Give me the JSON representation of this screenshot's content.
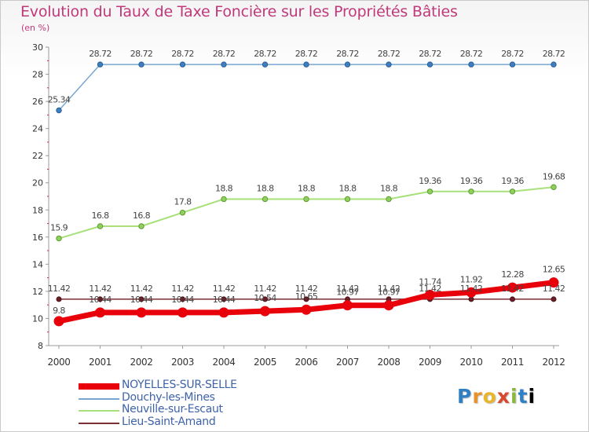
{
  "chart_data": {
    "type": "line",
    "title": "Evolution du Taux de Taxe Foncière sur les Propriétés Bâties",
    "ylabel": "(en %)",
    "xlabel": "",
    "ylim": [
      8,
      30
    ],
    "yticks": [
      8,
      10,
      12,
      14,
      16,
      18,
      20,
      22,
      24,
      26,
      28,
      30
    ],
    "categories": [
      "2000",
      "2001",
      "2002",
      "2003",
      "2004",
      "2005",
      "2006",
      "2007",
      "2008",
      "2009",
      "2010",
      "2011",
      "2012"
    ],
    "series": [
      {
        "name": "NOYELLES-SUR-SELLE",
        "color": "#e8000b",
        "values": [
          9.8,
          10.44,
          10.44,
          10.44,
          10.44,
          10.54,
          10.65,
          10.97,
          10.97,
          11.74,
          11.92,
          12.28,
          12.65
        ],
        "labels": [
          "9.8",
          "10.44",
          "10.44",
          "10.44",
          "10.44",
          "10.54",
          "10.65",
          "10.97",
          "10.97",
          "11.74",
          "11.92",
          "12.28",
          "12.65"
        ]
      },
      {
        "name": "Douchy-les-Mines",
        "color": "#78a6d2",
        "values": [
          25.34,
          28.72,
          28.72,
          28.72,
          28.72,
          28.72,
          28.72,
          28.72,
          28.72,
          28.72,
          28.72,
          28.72,
          28.72
        ],
        "labels": [
          "25.34",
          "28.72",
          "28.72",
          "28.72",
          "28.72",
          "28.72",
          "28.72",
          "28.72",
          "28.72",
          "28.72",
          "28.72",
          "28.72",
          "28.72"
        ]
      },
      {
        "name": "Neuville-sur-Escaut",
        "color": "#a8e07a",
        "values": [
          15.9,
          16.8,
          16.8,
          17.8,
          18.8,
          18.8,
          18.8,
          18.8,
          18.8,
          19.36,
          19.36,
          19.36,
          19.68
        ],
        "labels": [
          "15.9",
          "16.8",
          "16.8",
          "17.8",
          "18.8",
          "18.8",
          "18.8",
          "18.8",
          "18.8",
          "19.36",
          "19.36",
          "19.36",
          "19.68"
        ]
      },
      {
        "name": "Lieu-Saint-Amand",
        "color": "#7a2e36",
        "values": [
          11.42,
          11.42,
          11.42,
          11.42,
          11.42,
          11.42,
          11.42,
          11.42,
          11.42,
          11.42,
          11.42,
          11.42,
          11.42
        ],
        "labels": [
          "11.42",
          "11.42",
          "11.42",
          "11.42",
          "11.42",
          "11.42",
          "11.42",
          "11.42",
          "11.42",
          "11.42",
          "11.42",
          "11.42",
          "11.42"
        ]
      }
    ],
    "legend_position": "bottom-left",
    "grid": false
  },
  "branding": {
    "logo_letters": [
      "P",
      "r",
      "o",
      "x",
      "i",
      "t",
      "i"
    ]
  }
}
